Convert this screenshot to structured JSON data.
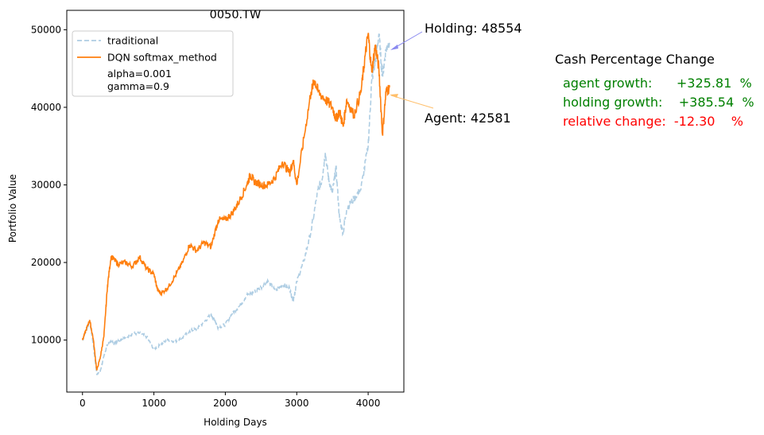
{
  "chart_data": {
    "type": "line",
    "title": "0050.TW",
    "xlabel": "Holding Days",
    "ylabel": "Portfolio Value",
    "xlim": [
      -220,
      4500
    ],
    "ylim": [
      3300,
      52500
    ],
    "xticks": [
      0,
      1000,
      2000,
      3000,
      4000
    ],
    "yticks": [
      10000,
      20000,
      30000,
      40000,
      50000
    ],
    "grid": false,
    "legend": {
      "placement": "top-left",
      "entries": [
        "traditional",
        "DQN softmax_method"
      ],
      "extra_lines": [
        "alpha=0.001",
        "gamma=0.9"
      ]
    },
    "series": [
      {
        "name": "traditional",
        "style": "dashed",
        "color": "#aecde3",
        "x": [
          0,
          50,
          100,
          150,
          200,
          250,
          300,
          350,
          400,
          450,
          500,
          600,
          700,
          800,
          900,
          1000,
          1100,
          1200,
          1300,
          1400,
          1500,
          1600,
          1700,
          1800,
          1850,
          1900,
          2000,
          2100,
          2200,
          2300,
          2400,
          2500,
          2600,
          2700,
          2800,
          2900,
          2950,
          3000,
          3100,
          3200,
          3300,
          3350,
          3400,
          3450,
          3500,
          3550,
          3600,
          3650,
          3700,
          3800,
          3900,
          4000,
          4050,
          4100,
          4150,
          4200,
          4250,
          4300
        ],
        "values": [
          10000,
          11200,
          12400,
          9500,
          5600,
          6000,
          7900,
          9500,
          9800,
          9600,
          10000,
          10300,
          10800,
          10900,
          10400,
          8800,
          9500,
          10000,
          9800,
          10300,
          11200,
          11400,
          12300,
          13300,
          12600,
          11600,
          12000,
          13500,
          14400,
          15800,
          16200,
          16800,
          17600,
          16300,
          17200,
          16700,
          15000,
          17500,
          20200,
          24000,
          29500,
          30500,
          34200,
          30500,
          29000,
          32200,
          25500,
          23800,
          27000,
          28200,
          29500,
          35000,
          43500,
          46000,
          49500,
          44000,
          47500,
          48554
        ]
      },
      {
        "name": "DQN softmax_method",
        "style": "solid",
        "color": "#ff7f0e",
        "x": [
          0,
          50,
          100,
          150,
          200,
          250,
          300,
          350,
          400,
          450,
          500,
          600,
          700,
          800,
          900,
          1000,
          1050,
          1100,
          1200,
          1300,
          1400,
          1500,
          1600,
          1700,
          1800,
          1900,
          2000,
          2100,
          2200,
          2300,
          2350,
          2400,
          2500,
          2600,
          2700,
          2800,
          2900,
          2950,
          3000,
          3100,
          3200,
          3250,
          3300,
          3400,
          3500,
          3550,
          3600,
          3650,
          3700,
          3800,
          3900,
          3950,
          4000,
          4050,
          4100,
          4150,
          4200,
          4250,
          4300
        ],
        "values": [
          10000,
          11300,
          12600,
          10200,
          6100,
          7800,
          10500,
          17000,
          20800,
          20300,
          19800,
          20000,
          19500,
          20700,
          19200,
          18500,
          16500,
          16000,
          16800,
          18300,
          20000,
          22300,
          21500,
          22600,
          22000,
          25500,
          25500,
          26400,
          28000,
          30000,
          31300,
          30500,
          30000,
          30000,
          31000,
          33000,
          31500,
          33200,
          30000,
          36000,
          42000,
          43500,
          42000,
          41000,
          40000,
          38500,
          39500,
          37500,
          41000,
          39000,
          42000,
          46000,
          49500,
          44500,
          48000,
          45000,
          36500,
          42000,
          42581
        ]
      }
    ],
    "annotations": [
      {
        "text": "Holding: 48554",
        "color": "#8a8af0"
      },
      {
        "text": "Agent: 42581",
        "color": "#ffbf6b"
      }
    ]
  },
  "stats": {
    "title": "Cash Percentage Change",
    "rows": [
      {
        "text": "agent growth:      +325.81  %",
        "color": "#008000"
      },
      {
        "text": "holding growth:    +385.54  %",
        "color": "#008000"
      },
      {
        "text": "relative change:  -12.30    %",
        "color": "#ff0000"
      }
    ]
  }
}
